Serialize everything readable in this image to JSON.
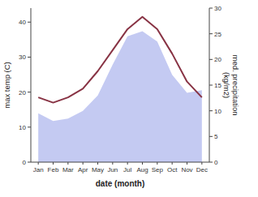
{
  "chart_data": {
    "type": "line",
    "categories": [
      "Jan",
      "Feb",
      "Mar",
      "Apr",
      "May",
      "Jun",
      "Jul",
      "Aug",
      "Sep",
      "Oct",
      "Nov",
      "Dec"
    ],
    "x_label": "date (month)",
    "y_label": "max temp (C)",
    "y2_label": "med. precipitation\n(kg/m2)",
    "ylim": [
      0,
      44
    ],
    "yticks": [
      0,
      10,
      20,
      30,
      40
    ],
    "y2lim": [
      0,
      30
    ],
    "y2ticks": [
      0,
      5,
      10,
      15,
      20,
      25,
      30
    ],
    "grid": false,
    "series": [
      {
        "type": "area",
        "axis": "y2",
        "color": "#b0b8ee",
        "values": [
          9.5,
          8.0,
          8.5,
          10.0,
          13.0,
          19.0,
          24.5,
          25.5,
          23.5,
          17.0,
          13.5,
          14.0
        ]
      },
      {
        "type": "line",
        "color": "#883344",
        "values": [
          18.5,
          17.0,
          18.5,
          21.0,
          26.0,
          32.0,
          38.0,
          41.5,
          38.0,
          31.0,
          23.0,
          18.5
        ]
      }
    ]
  }
}
